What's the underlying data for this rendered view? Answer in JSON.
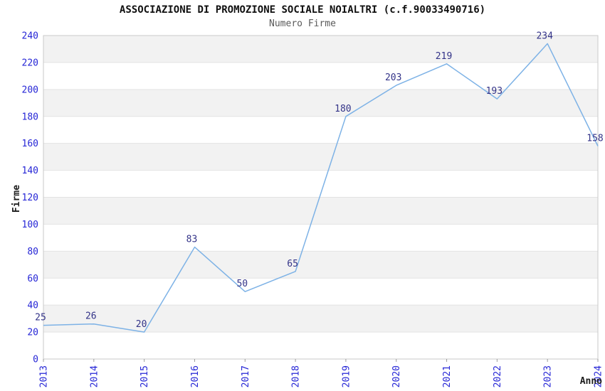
{
  "chart_data": {
    "type": "line",
    "title": "ASSOCIAZIONE DI PROMOZIONE SOCIALE NOIALTRI (c.f.90033490716)",
    "subtitle": "Numero Firme",
    "xlabel": "Anno",
    "ylabel": "Firme",
    "categories": [
      "2013",
      "2014",
      "2015",
      "2016",
      "2017",
      "2018",
      "2019",
      "2020",
      "2021",
      "2022",
      "2023",
      "2024"
    ],
    "values": [
      25,
      26,
      20,
      83,
      50,
      65,
      180,
      203,
      219,
      193,
      234,
      158
    ],
    "ylim": [
      0,
      240
    ],
    "ytick_step": 20,
    "yticks": [
      0,
      20,
      40,
      60,
      80,
      100,
      120,
      140,
      160,
      180,
      200,
      220,
      240
    ],
    "grid": "alternating-horizontal-bands",
    "legend": "none",
    "point_labels_visible": true,
    "x_tick_label_rotation_deg": -90,
    "colors": {
      "title": "#101010",
      "subtitle": "#5a5a5a",
      "axis_title": "#1c1c1c",
      "tick_label": "#2626d6",
      "value_label": "#333388",
      "line": "#7db2e6",
      "band_fill": "#f2f2f2",
      "grid_line": "#e3e3e3",
      "plot_border": "#c9c9c9",
      "tick_mark": "#9a9a9a",
      "background": "#ffffff"
    }
  }
}
